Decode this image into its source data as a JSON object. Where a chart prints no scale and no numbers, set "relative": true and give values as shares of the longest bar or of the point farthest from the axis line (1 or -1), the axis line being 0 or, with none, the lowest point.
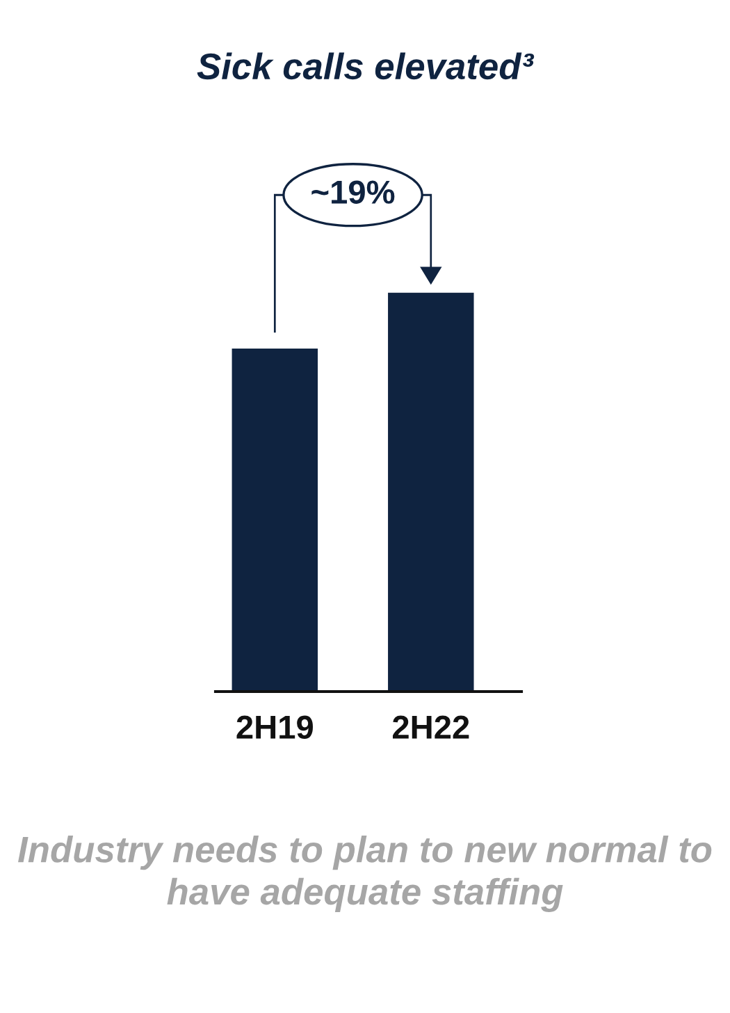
{
  "chart_data": {
    "type": "bar",
    "title": "Sick calls elevated³",
    "categories": [
      "2H19",
      "2H22"
    ],
    "values": [
      0.86,
      1
    ],
    "color": "#0f2340",
    "relative": true,
    "annotations": [
      "~19%",
      "Industry needs to plan to new normal to have adequate staffing"
    ]
  }
}
